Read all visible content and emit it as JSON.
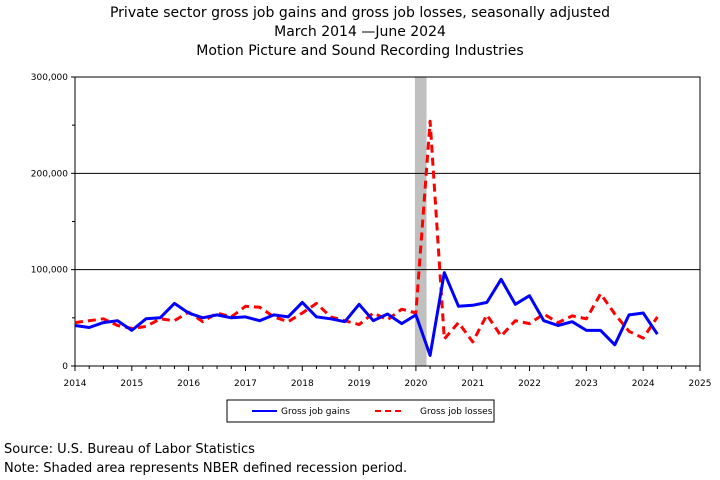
{
  "titles": {
    "line1": "Private sector gross job gains and gross job losses, seasonally adjusted",
    "line2": "March 2014 —June 2024",
    "line3": "Motion Picture and Sound Recording Industries"
  },
  "notes": {
    "source": "Source: U.S. Bureau of Labor Statistics",
    "note": "Note: Shaded area represents NBER defined recession period."
  },
  "chart_data": {
    "type": "line",
    "title": "Private sector gross job gains and gross job losses, seasonally adjusted",
    "xlim": [
      2014,
      2025
    ],
    "ylim": [
      0,
      300000
    ],
    "x_ticks": [
      "2014",
      "2015",
      "2016",
      "2017",
      "2018",
      "2019",
      "2020",
      "2021",
      "2022",
      "2023",
      "2024",
      "2025"
    ],
    "y_ticks": [
      "0",
      "100,000",
      "200,000",
      "300,000"
    ],
    "grid": "horizontal at 100,000 intervals",
    "legend_position": "bottom-center",
    "recession": {
      "start": 2020.0,
      "end": 2020.17,
      "color": "#c0c0c0"
    },
    "x": [
      2014.0,
      2014.25,
      2014.5,
      2014.75,
      2015.0,
      2015.25,
      2015.5,
      2015.75,
      2016.0,
      2016.25,
      2016.5,
      2016.75,
      2017.0,
      2017.25,
      2017.5,
      2017.75,
      2018.0,
      2018.25,
      2018.5,
      2018.75,
      2019.0,
      2019.25,
      2019.5,
      2019.75,
      2020.0,
      2020.25,
      2020.5,
      2020.75,
      2021.0,
      2021.25,
      2021.5,
      2021.75,
      2022.0,
      2022.25,
      2022.5,
      2022.75,
      2023.0,
      2023.25,
      2023.5,
      2023.75,
      2024.0,
      2024.25
    ],
    "series": [
      {
        "name": "Gross job gains",
        "color": "#0000ff",
        "style": "solid",
        "values": [
          42000,
          40000,
          45000,
          47000,
          37000,
          49000,
          50000,
          65000,
          55000,
          50000,
          53000,
          50000,
          51000,
          47000,
          53000,
          51000,
          66000,
          51000,
          49000,
          46000,
          64000,
          47000,
          54000,
          44000,
          53000,
          11000,
          97000,
          62000,
          63000,
          66000,
          90000,
          64000,
          73000,
          47000,
          42000,
          46000,
          37000,
          37000,
          22000,
          53000,
          55000,
          33000
        ]
      },
      {
        "name": "Gross job losses",
        "color": "#ff0000",
        "style": "dashed",
        "values": [
          45000,
          47000,
          49000,
          42000,
          39000,
          41000,
          49000,
          47000,
          56000,
          46000,
          55000,
          51000,
          62000,
          61000,
          51000,
          46000,
          55000,
          65000,
          51000,
          47000,
          43000,
          55000,
          48000,
          59000,
          55000,
          254000,
          28000,
          45000,
          25000,
          53000,
          31000,
          47000,
          44000,
          54000,
          45000,
          52000,
          49000,
          75000,
          54000,
          36000,
          29000,
          51000
        ]
      }
    ]
  }
}
